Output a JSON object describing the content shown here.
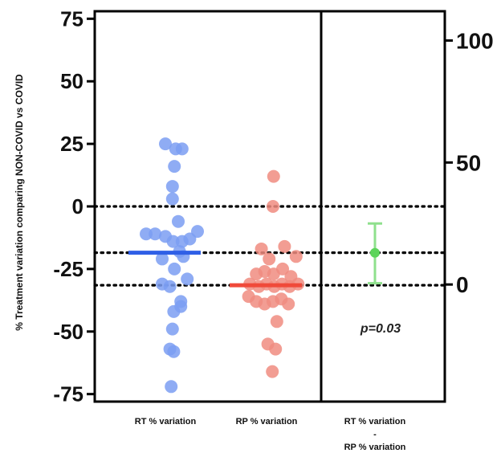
{
  "chart_data": {
    "type": "scatter",
    "ylabel": "% Treatment variation comparing NON-COVID vs COVID",
    "ylim": [
      -78,
      78
    ],
    "yticks": [
      75,
      50,
      25,
      0,
      -25,
      -50,
      -75
    ],
    "y2lim": [
      -48,
      112
    ],
    "y2ticks": [
      100,
      50,
      0
    ],
    "reference_lines": [
      0,
      -18.5,
      -31.5
    ],
    "categories": [
      {
        "label_lines": [
          "RT % variation"
        ]
      },
      {
        "label_lines": [
          "RP % variation"
        ]
      },
      {
        "label_lines": [
          "RT % variation",
          "-",
          "RP % variation"
        ]
      }
    ],
    "series": [
      {
        "category_index": 0,
        "color": "#7b9ef2",
        "mean_color": "#2f5fe6",
        "mean": -18.5,
        "points": [
          [
            -1,
            25
          ],
          [
            0.6,
            23
          ],
          [
            1.6,
            23
          ],
          [
            0.4,
            16
          ],
          [
            0.1,
            8
          ],
          [
            0.1,
            3
          ],
          [
            1,
            -6
          ],
          [
            -4,
            -11
          ],
          [
            -2.6,
            -11
          ],
          [
            -1,
            -12
          ],
          [
            0.2,
            -14
          ],
          [
            1.6,
            -14
          ],
          [
            2.8,
            -13
          ],
          [
            4,
            -10
          ],
          [
            -1.5,
            -21
          ],
          [
            1.2,
            -18
          ],
          [
            1.8,
            -20
          ],
          [
            0.4,
            -25
          ],
          [
            -1.5,
            -31
          ],
          [
            -0.3,
            -32
          ],
          [
            2.4,
            -29
          ],
          [
            1.4,
            -38
          ],
          [
            0.3,
            -42
          ],
          [
            1.4,
            -40
          ],
          [
            0.1,
            -49
          ],
          [
            -0.3,
            -57
          ],
          [
            0.3,
            -58
          ],
          [
            -0.1,
            -72
          ]
        ]
      },
      {
        "category_index": 1,
        "color": "#f08c80",
        "mean_color": "#f04a3a",
        "mean": -31.5,
        "points": [
          [
            0.1,
            12
          ],
          [
            0,
            0
          ],
          [
            -1.8,
            -17
          ],
          [
            1.8,
            -16
          ],
          [
            3.6,
            -20
          ],
          [
            -0.6,
            -21
          ],
          [
            -2.6,
            -27
          ],
          [
            -1.3,
            -26
          ],
          [
            0.1,
            -27
          ],
          [
            1.5,
            -25
          ],
          [
            2.8,
            -28
          ],
          [
            -3.6,
            -31
          ],
          [
            -2.2,
            -32
          ],
          [
            -1,
            -31
          ],
          [
            0.2,
            -32
          ],
          [
            1.4,
            -31
          ],
          [
            2.6,
            -32
          ],
          [
            3.9,
            -31
          ],
          [
            -3.8,
            -36
          ],
          [
            -2.6,
            -38
          ],
          [
            -1.3,
            -39
          ],
          [
            0,
            -38
          ],
          [
            1.3,
            -37
          ],
          [
            2.4,
            -39
          ],
          [
            0.6,
            -46
          ],
          [
            -0.8,
            -55
          ],
          [
            0.4,
            -57
          ],
          [
            -0.1,
            -66
          ]
        ]
      }
    ],
    "difference": {
      "category_index": 2,
      "axis": "right",
      "estimate": 13,
      "ci": [
        0.5,
        25
      ],
      "color": "#5cd45a",
      "ci_color": "#8fe08d",
      "annotation": "p=0.03"
    }
  }
}
